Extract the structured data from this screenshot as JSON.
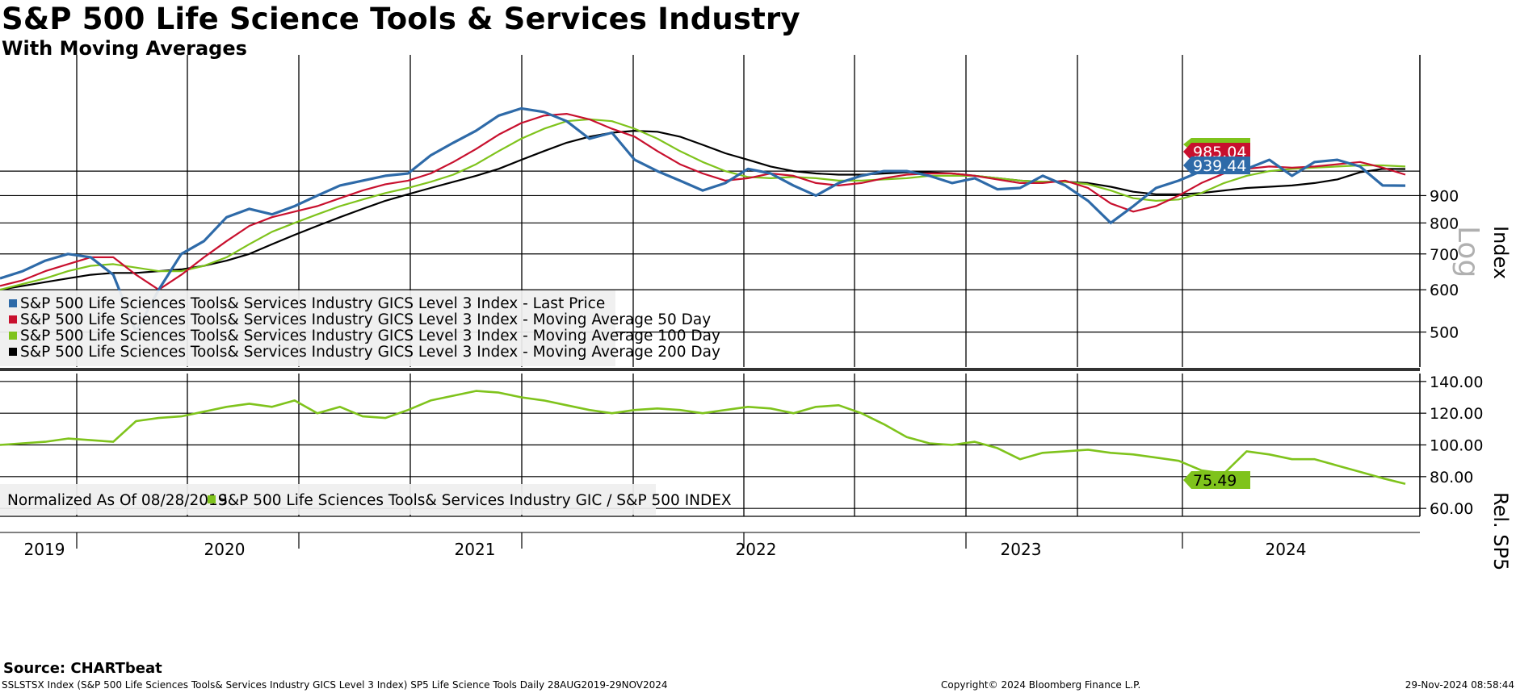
{
  "title": "S&P 500 Life Science Tools & Services Industry",
  "subtitle": "With Moving Averages",
  "source": "Source: CHARTbeat",
  "footer": {
    "left": "SSLSTSX Index (S&P 500 Life Sciences Tools& Services Industry GICS Level 3 Index) SP5 Life Science Tools  Daily 28AUG2019-29NOV2024",
    "middle": "Copyright© 2024 Bloomberg Finance L.P.",
    "right": "29-Nov-2024 08:58:44"
  },
  "colors": {
    "last_price": "#2e6aa8",
    "ma50": "#c8102e",
    "ma100": "#7fc31c",
    "ma200": "#000000",
    "relative": "#7fc31c"
  },
  "chart_data": [
    {
      "type": "line",
      "panel": "upper",
      "yscale": "log",
      "ylim": [
        430,
        1650
      ],
      "ylabel": "Index",
      "scale_label": "Log",
      "yticks": [
        "500",
        "600",
        "700",
        "800",
        "900"
      ],
      "x_labels": [
        "2019",
        "2020",
        "2021",
        "2022",
        "2023",
        "2024"
      ],
      "x": [
        "2019-09",
        "2019-10",
        "2019-11",
        "2019-12",
        "2020-01",
        "2020-02",
        "2020-03",
        "2020-04",
        "2020-05",
        "2020-06",
        "2020-07",
        "2020-08",
        "2020-09",
        "2020-10",
        "2020-11",
        "2020-12",
        "2021-01",
        "2021-02",
        "2021-03",
        "2021-04",
        "2021-05",
        "2021-06",
        "2021-07",
        "2021-08",
        "2021-09",
        "2021-10",
        "2021-11",
        "2021-12",
        "2022-01",
        "2022-02",
        "2022-03",
        "2022-04",
        "2022-05",
        "2022-06",
        "2022-07",
        "2022-08",
        "2022-09",
        "2022-10",
        "2022-11",
        "2022-12",
        "2023-01",
        "2023-02",
        "2023-03",
        "2023-04",
        "2023-05",
        "2023-06",
        "2023-07",
        "2023-08",
        "2023-09",
        "2023-10",
        "2023-11",
        "2023-12",
        "2024-01",
        "2024-02",
        "2024-03",
        "2024-04",
        "2024-05",
        "2024-06",
        "2024-07",
        "2024-08",
        "2024-09",
        "2024-10",
        "2024-11"
      ],
      "series": [
        {
          "name": "S&P 500 Life Sciences Tools& Services Industry GICS Level 3 Index - Last Price",
          "values": [
            630,
            650,
            680,
            700,
            690,
            640,
            500,
            600,
            700,
            740,
            820,
            850,
            830,
            860,
            900,
            940,
            960,
            980,
            990,
            1070,
            1130,
            1190,
            1270,
            1310,
            1290,
            1240,
            1150,
            1180,
            1050,
            1000,
            960,
            920,
            950,
            1010,
            990,
            940,
            900,
            950,
            980,
            1000,
            1000,
            980,
            950,
            970,
            925,
            930,
            980,
            940,
            880,
            800,
            860,
            930,
            960,
            1000,
            1030,
            1010,
            1050,
            980,
            1040,
            1050,
            1020,
            940,
            939.44
          ]
        },
        {
          "name": "S&P 500 Life Sciences Tools& Services Industry GICS Level 3 Index - Moving Average 50 Day",
          "values": [
            610,
            625,
            650,
            670,
            690,
            690,
            640,
            600,
            640,
            690,
            740,
            790,
            820,
            840,
            860,
            890,
            920,
            945,
            960,
            990,
            1040,
            1100,
            1170,
            1230,
            1270,
            1280,
            1250,
            1200,
            1160,
            1090,
            1030,
            990,
            960,
            970,
            990,
            980,
            950,
            940,
            950,
            970,
            985,
            990,
            990,
            980,
            965,
            950,
            950,
            960,
            930,
            870,
            840,
            860,
            900,
            950,
            990,
            1010,
            1020,
            1015,
            1020,
            1030,
            1040,
            1015,
            985.04
          ]
        },
        {
          "name": "S&P 500 Life Sciences Tools& Services Industry GICS Level 3 Index - Moving Average 100 Day",
          "values": [
            600,
            615,
            630,
            650,
            665,
            670,
            660,
            650,
            650,
            665,
            690,
            730,
            770,
            800,
            830,
            860,
            885,
            910,
            930,
            955,
            985,
            1030,
            1090,
            1150,
            1200,
            1240,
            1250,
            1240,
            1200,
            1150,
            1090,
            1040,
            1000,
            975,
            970,
            975,
            970,
            960,
            960,
            965,
            970,
            980,
            980,
            980,
            970,
            960,
            955,
            955,
            945,
            920,
            890,
            880,
            885,
            910,
            950,
            980,
            1000,
            1010,
            1015,
            1020,
            1025,
            1025,
            1020
          ]
        },
        {
          "name": "S&P 500 Life Sciences Tools& Services Industry GICS Level 3 Index - Moving Average 200 Day",
          "values": [
            600,
            610,
            620,
            630,
            640,
            645,
            645,
            650,
            655,
            665,
            680,
            700,
            730,
            760,
            790,
            820,
            850,
            880,
            905,
            930,
            955,
            980,
            1010,
            1050,
            1090,
            1130,
            1160,
            1180,
            1190,
            1185,
            1160,
            1120,
            1080,
            1050,
            1020,
            1000,
            990,
            985,
            985,
            990,
            995,
            995,
            990,
            980,
            970,
            960,
            955,
            955,
            950,
            935,
            915,
            905,
            905,
            910,
            920,
            930,
            935,
            940,
            950,
            965,
            995,
            1010,
            1009
          ]
        }
      ],
      "last_values": [
        "985.04",
        "939.44"
      ]
    },
    {
      "type": "line",
      "panel": "lower",
      "ylim": [
        55,
        145
      ],
      "ylabel": "Rel. SP5",
      "yticks": [
        "60.00",
        "80.00",
        "100.00",
        "120.00",
        "140.00"
      ],
      "legend_note": "Normalized As Of 08/28/2019",
      "series": [
        {
          "name": "S&P 500 Life Sciences Tools& Services Industry GIC / S&P 500 INDEX",
          "values": [
            100,
            101,
            102,
            104,
            103,
            102,
            115,
            117,
            118,
            121,
            124,
            126,
            124,
            128,
            120,
            124,
            118,
            117,
            122,
            128,
            131,
            134,
            133,
            130,
            128,
            125,
            122,
            120,
            122,
            123,
            122,
            120,
            122,
            124,
            123,
            120,
            124,
            125,
            120,
            113,
            105,
            101,
            100,
            102,
            98,
            91,
            95,
            96,
            97,
            95,
            94,
            92,
            90,
            84,
            82,
            96,
            94,
            91,
            91,
            87,
            83,
            79,
            75.49
          ]
        }
      ],
      "last_value": "75.49"
    }
  ]
}
